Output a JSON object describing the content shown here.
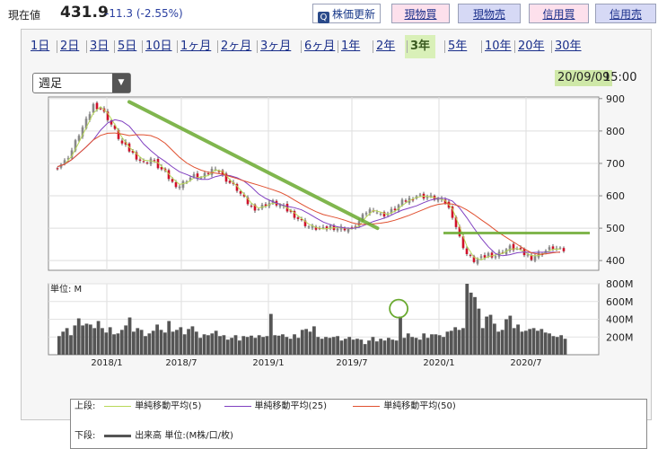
{
  "header": {
    "label": "現在値",
    "price": "431.9",
    "change": "-11.3 (-2.55%)",
    "buttons": {
      "update": "株価更新",
      "spot_buy": "現物買",
      "spot_sell": "現物売",
      "margin_buy": "信用買",
      "margin_sell": "信用売"
    }
  },
  "tabs": [
    "1日",
    "2日",
    "3日",
    "5日",
    "10日",
    "1ヶ月",
    "2ヶ月",
    "3ヶ月",
    "6ヶ月",
    "1年",
    "2年",
    "3年",
    "5年",
    "10年",
    "20年",
    "30年"
  ],
  "active_tab": "3年",
  "period_select": "週足",
  "timestamp": {
    "date": "20/09/09",
    "time": "15:00"
  },
  "colors": {
    "up": "#888888",
    "down": "#d0102a",
    "ma5": "#b8d858",
    "ma25": "#8040c0",
    "ma50": "#e05030",
    "trend": "#6aaa30",
    "volume": "#555555"
  },
  "chart_data": [
    {
      "type": "candlestick",
      "frequency": "weekly",
      "x_ticks": [
        "2018/1",
        "2018/7",
        "2019/1",
        "2019/7",
        "2020/1",
        "2020/7"
      ],
      "y_ticks": [
        400,
        500,
        600,
        700,
        800,
        900
      ],
      "ylim": [
        370,
        905
      ],
      "series": [
        {
          "name": "単純移動平均(5)",
          "type": "line"
        },
        {
          "name": "単純移動平均(25)",
          "type": "line"
        },
        {
          "name": "単純移動平均(50)",
          "type": "line"
        }
      ],
      "close_path": [
        690,
        705,
        740,
        790,
        830,
        880,
        870,
        840,
        800,
        760,
        740,
        720,
        700,
        715,
        690,
        670,
        640,
        630,
        650,
        660,
        655,
        670,
        690,
        660,
        640,
        620,
        590,
        565,
        560,
        575,
        580,
        570,
        555,
        540,
        520,
        505,
        500,
        495,
        505,
        500,
        500,
        495,
        520,
        550,
        560,
        540,
        545,
        560,
        580,
        590,
        600,
        598,
        595,
        590,
        580,
        540,
        470,
        420,
        400,
        405,
        420,
        415,
        430,
        440,
        435,
        420,
        410,
        420,
        430,
        440,
        432
      ],
      "annotations": [
        {
          "type": "trendline",
          "from": [
            "2018/1",
            890
          ],
          "to": [
            "2019/10",
            500
          ]
        },
        {
          "type": "horizontal",
          "value": 485,
          "from": "2020/1",
          "to": "2020/9"
        }
      ]
    },
    {
      "type": "bar",
      "title": "単位: M",
      "y_ticks": [
        "200M",
        "400M",
        "600M",
        "800M"
      ],
      "ylim": [
        0,
        800
      ],
      "values": [
        210,
        260,
        300,
        220,
        330,
        410,
        330,
        350,
        340,
        300,
        380,
        300,
        250,
        310,
        230,
        240,
        280,
        330,
        420,
        260,
        300,
        280,
        210,
        240,
        270,
        340,
        280,
        250,
        380,
        260,
        280,
        310,
        230,
        290,
        320,
        260,
        190,
        230,
        220,
        240,
        270,
        210,
        220,
        170,
        190,
        220,
        160,
        210,
        200,
        215,
        190,
        220,
        200,
        210,
        460,
        220,
        215,
        230,
        200,
        180,
        230,
        190,
        280,
        290,
        260,
        320,
        200,
        180,
        200,
        190,
        200,
        210,
        160,
        180,
        200,
        170,
        180,
        170,
        120,
        160,
        200,
        150,
        180,
        160,
        190,
        170,
        160,
        430,
        190,
        240,
        200,
        190,
        170,
        240,
        190,
        230,
        230,
        220,
        200,
        260,
        270,
        310,
        280,
        300,
        800,
        700,
        650,
        520,
        300,
        430,
        450,
        350,
        260,
        280,
        400,
        440,
        300,
        340,
        260,
        270,
        290,
        300,
        270,
        290,
        250,
        240,
        210,
        200,
        220,
        180
      ]
    }
  ],
  "legend": {
    "upper_label": "上段:",
    "ma5": "単純移動平均(5)",
    "ma25": "単純移動平均(25)",
    "ma50": "単純移動平均(50)",
    "lower_label": "下段:",
    "volume": "出来高 単位:(M株/口/枚)"
  }
}
